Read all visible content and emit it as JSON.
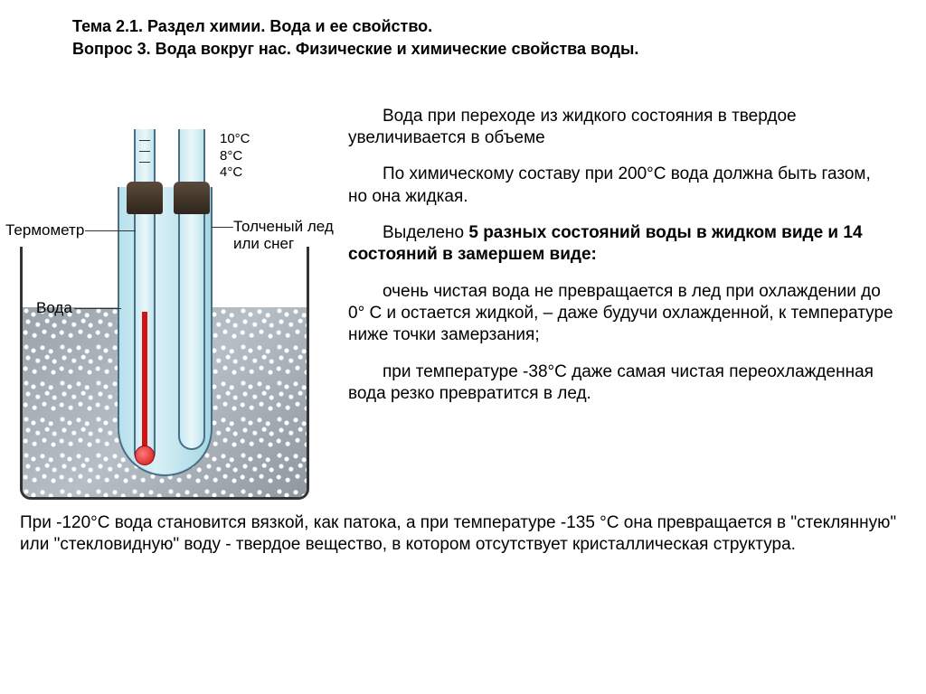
{
  "header": {
    "topic": "Тема 2.1. Раздел химии. Вода и ее свойство.",
    "question": "Вопрос 3. Вода вокруг нас. Физические и  химические свойства воды."
  },
  "diagram": {
    "temps": {
      "t1": "10°C",
      "t2": "8°C",
      "t3": "4°C"
    },
    "labels": {
      "thermometer": "Термометр",
      "water": "Вода",
      "ice": "Толченый лед или снег"
    },
    "colors": {
      "ice_fill": "#9aa3ab",
      "water_fill": "#b8e1ec",
      "mercury": "#d11313",
      "cork": "#3b2f24",
      "outline": "#4a6e86"
    }
  },
  "body": {
    "p1": "Вода при переходе из жидкого состояния в твердое увеличивается в объеме",
    "p2": "По химическому составу при 200°С вода должна быть газом, но она жидкая.",
    "p3a": "Выделено ",
    "p3b": "5 разных состояний воды в жидком виде и 14 состояний в замершем виде:",
    "p4": "очень чистая вода не превращается в лед при охлаждении до 0° С и остается жидкой, – даже будучи охлажденной, к температуре ниже точки замерзания;",
    "p5": "при температуре -38°С даже самая чистая переохлажденная вода резко превратится в лед.",
    "footer": "При -120°С вода становится вязкой, как патока, а при температуре -135 °С она превращается в \"стеклянную\" или \"стекловидную\" воду - твердое вещество, в котором отсутствует кристаллическая структура."
  }
}
